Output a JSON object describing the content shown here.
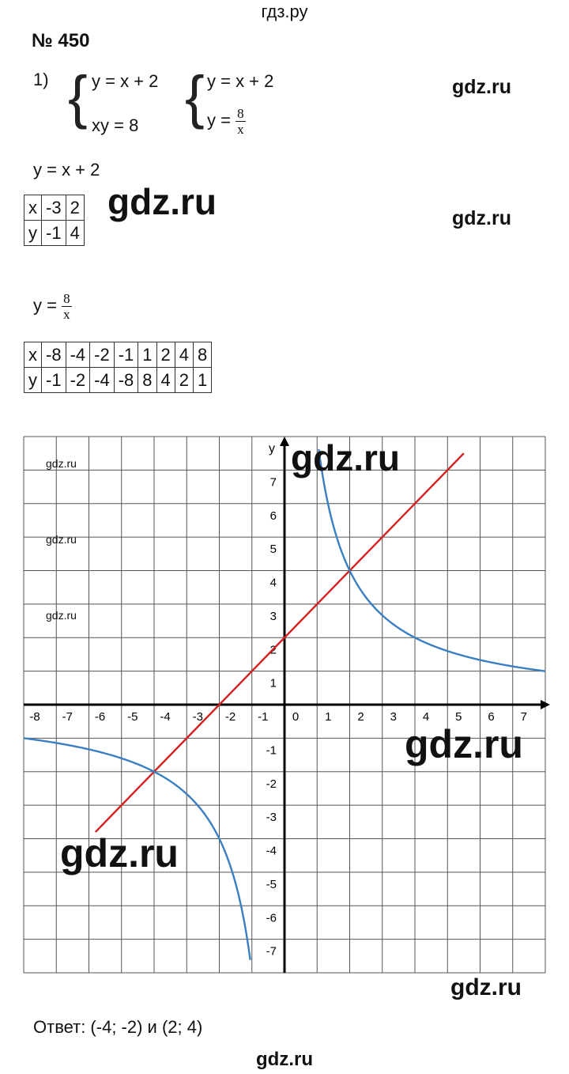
{
  "header": {
    "site": "гдз.ру"
  },
  "footer": {
    "site": "gdz.ru"
  },
  "task": {
    "number": "№ 450",
    "part": "1)"
  },
  "system1": {
    "eq1": "y = x + 2",
    "eq2": "xy = 8"
  },
  "system2": {
    "eq1": "y = x + 2",
    "eq2_lhs": "y =",
    "eq2_num": "8",
    "eq2_den": "x"
  },
  "table1": {
    "caption": "y = x + 2",
    "row_x": [
      "x",
      "-3",
      "2"
    ],
    "row_y": [
      "y",
      "-1",
      "4"
    ]
  },
  "table2": {
    "caption_lhs": "y =",
    "caption_num": "8",
    "caption_den": "x",
    "row_x": [
      "x",
      "-8",
      "-4",
      "-2",
      "-1",
      "1",
      "2",
      "4",
      "8"
    ],
    "row_y": [
      "y",
      "-1",
      "-2",
      "-4",
      "-8",
      "8",
      "4",
      "2",
      "1"
    ]
  },
  "watermarks": {
    "w1": "gdz.ru",
    "w2": "gdz.ru",
    "w3": "gdz.ru",
    "w4": "gdz.ru",
    "w5": "gdz.ru",
    "w6": "gdz.ru",
    "w7": "gdz.ru",
    "w8": "gdz.ru",
    "w9": "gdz.ru",
    "w10": "gdz.ru"
  },
  "chart_data": {
    "type": "line",
    "xlabel": "",
    "ylabel": "y",
    "xlim": [
      -8,
      8
    ],
    "ylim": [
      -8,
      8
    ],
    "grid": true,
    "x_ticks": [
      "-8",
      "-7",
      "-6",
      "-5",
      "-4",
      "-3",
      "-2",
      "-1",
      "0",
      "1",
      "2",
      "3",
      "4",
      "5",
      "6",
      "7"
    ],
    "y_ticks": [
      "7",
      "6",
      "5",
      "4",
      "3",
      "2",
      "1",
      "-1",
      "-2",
      "-3",
      "-4",
      "-5",
      "-6",
      "-7"
    ],
    "series": [
      {
        "formula": "y = x + 2",
        "color": "#d42020",
        "x_range": [
          -5.8,
          5.5
        ]
      },
      {
        "formula": "y = 8/x",
        "color": "#3a7fc1",
        "branches": [
          [
            -8,
            -1.05
          ],
          [
            1.05,
            8
          ]
        ]
      }
    ],
    "intersections": [
      [
        -4,
        -2
      ],
      [
        2,
        4
      ]
    ]
  },
  "answer": {
    "text": "Ответ: (-4; -2) и (2; 4)"
  }
}
